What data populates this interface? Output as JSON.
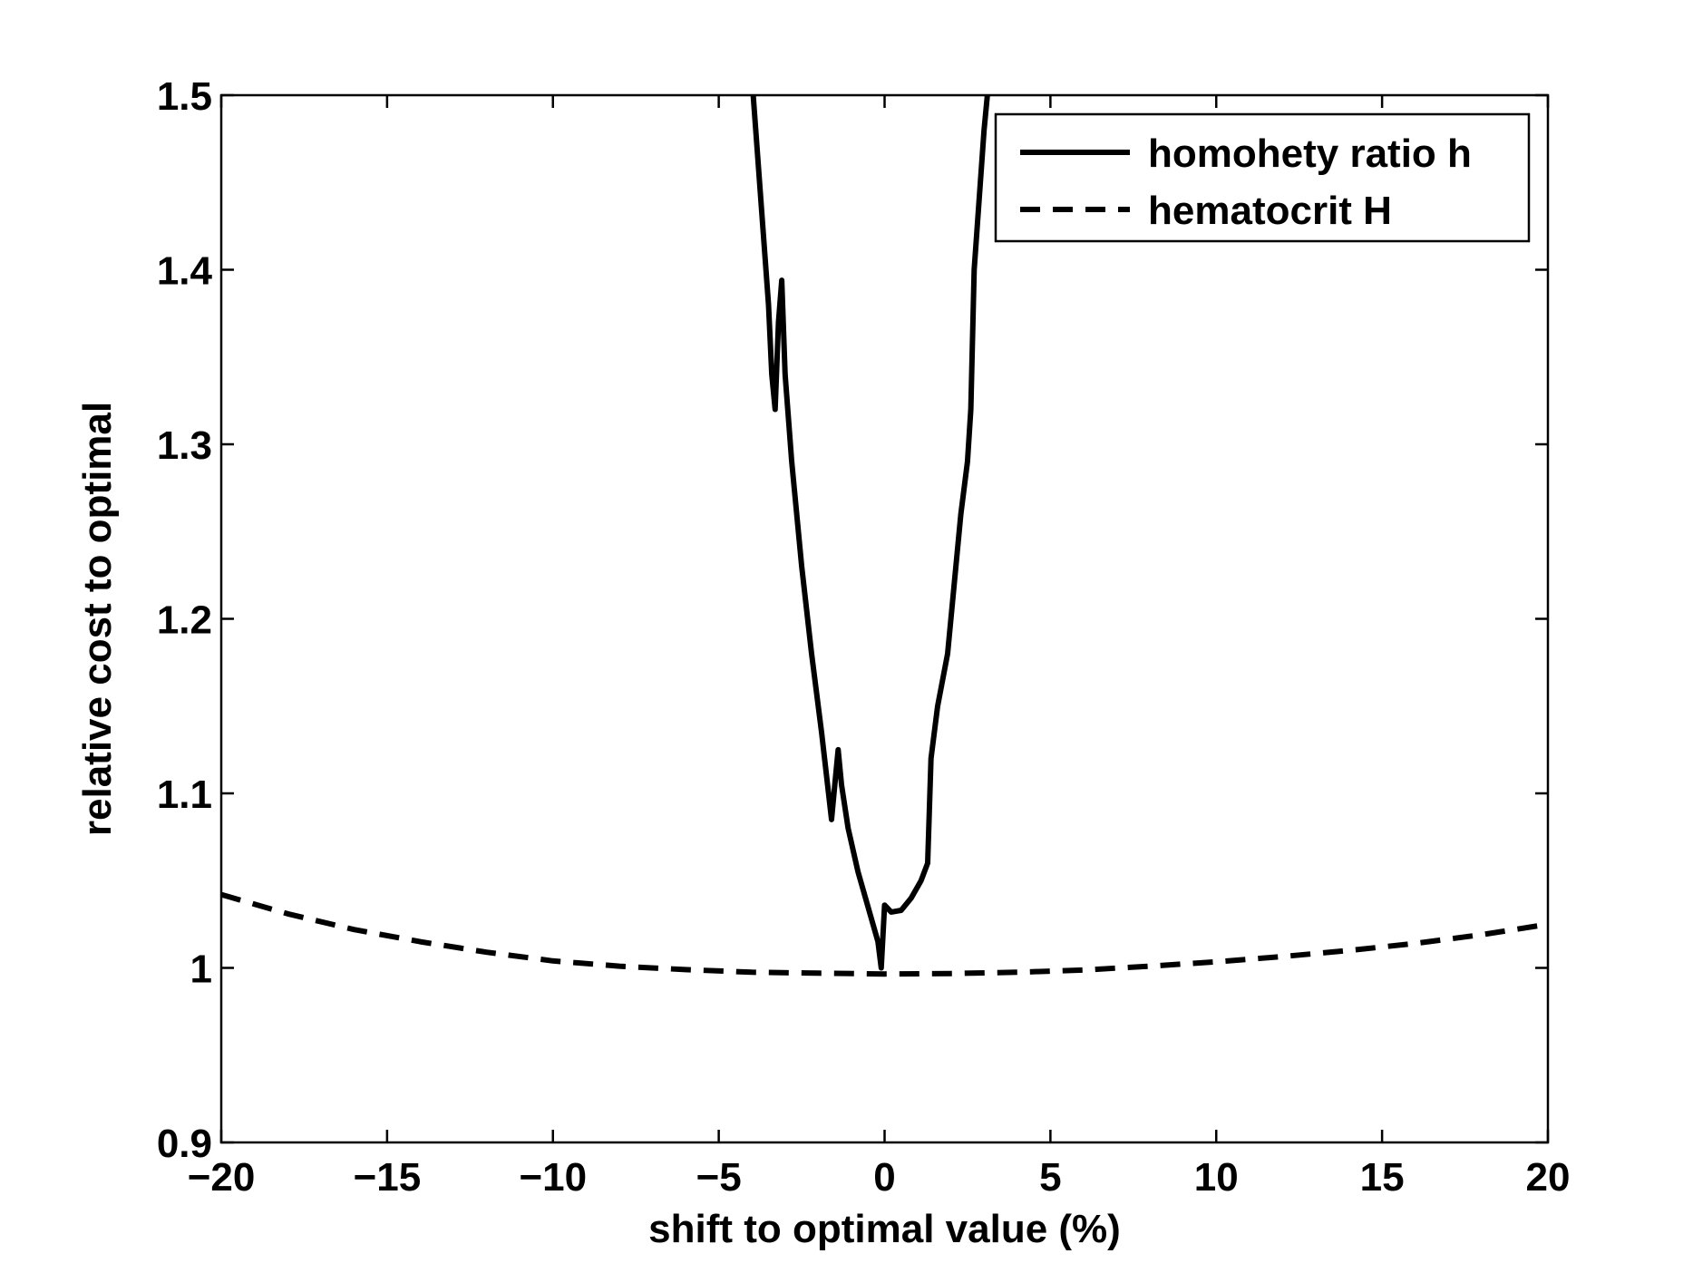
{
  "chart_data": {
    "type": "line",
    "title": "",
    "xlabel": "shift to optimal value (%)",
    "ylabel": "relative cost to optimal",
    "xlim": [
      -20,
      20
    ],
    "ylim": [
      0.9,
      1.5
    ],
    "x_ticks": [
      -20,
      -15,
      -10,
      -5,
      0,
      5,
      10,
      15,
      20
    ],
    "x_tick_labels": [
      "−20",
      "−15",
      "−10",
      "−5",
      "0",
      "5",
      "10",
      "15",
      "20"
    ],
    "y_ticks": [
      0.9,
      1.0,
      1.1,
      1.2,
      1.3,
      1.4,
      1.5
    ],
    "y_tick_labels": [
      "0.9",
      "1",
      "1.1",
      "1.2",
      "1.3",
      "1.4",
      "1.5"
    ],
    "grid": false,
    "legend_position": "top-right",
    "series": [
      {
        "name": "homohety ratio h",
        "style": "solid",
        "color": "#000000",
        "x": [
          -4.0,
          -3.5,
          -3.4,
          -3.3,
          -3.2,
          -3.1,
          -3.0,
          -2.8,
          -2.5,
          -2.2,
          -1.9,
          -1.6,
          -1.5,
          -1.4,
          -1.3,
          -1.1,
          -0.8,
          -0.5,
          -0.2,
          -0.1,
          0.0,
          0.2,
          0.5,
          0.8,
          1.1,
          1.3,
          1.4,
          1.6,
          1.9,
          2.1,
          2.3,
          2.5,
          2.6,
          2.7,
          3.0,
          3.2
        ],
        "y": [
          1.51,
          1.38,
          1.34,
          1.32,
          1.37,
          1.394,
          1.34,
          1.29,
          1.23,
          1.18,
          1.135,
          1.085,
          1.105,
          1.125,
          1.105,
          1.08,
          1.055,
          1.035,
          1.015,
          1.0,
          1.036,
          1.032,
          1.033,
          1.04,
          1.05,
          1.06,
          1.12,
          1.15,
          1.18,
          1.22,
          1.26,
          1.29,
          1.32,
          1.4,
          1.48,
          1.52
        ]
      },
      {
        "name": "hematocrit H",
        "style": "dashed",
        "color": "#000000",
        "x": [
          -20,
          -18,
          -16,
          -14,
          -12,
          -10,
          -8,
          -6,
          -4,
          -2,
          0,
          2,
          4,
          6,
          8,
          10,
          12,
          14,
          16,
          18,
          20
        ],
        "y": [
          1.042,
          1.031,
          1.022,
          1.015,
          1.009,
          1.004,
          1.001,
          0.999,
          0.9975,
          0.997,
          0.9965,
          0.9968,
          0.9975,
          0.9988,
          1.001,
          1.0035,
          1.0065,
          1.01,
          1.014,
          1.019,
          1.025
        ]
      }
    ]
  }
}
